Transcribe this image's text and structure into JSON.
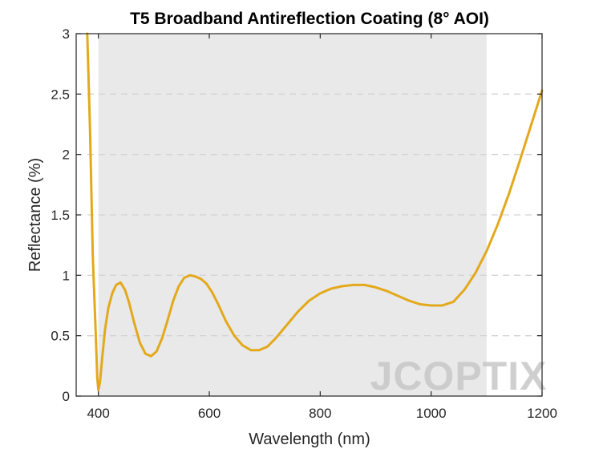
{
  "chart_data": {
    "type": "line",
    "title": "T5 Broadband Antireflection Coating (8° AOI)",
    "xlabel": "Wavelength (nm)",
    "ylabel": "Reflectance (%)",
    "xlim": [
      360,
      1200
    ],
    "ylim": [
      0,
      3
    ],
    "xticks": [
      400,
      600,
      800,
      1000,
      1200
    ],
    "yticks": [
      0,
      0.5,
      1,
      1.5,
      2,
      2.5,
      3
    ],
    "xtick_labels": [
      "400",
      "600",
      "800",
      "1000",
      "1200"
    ],
    "ytick_labels": [
      "0",
      "0.5",
      "1",
      "1.5",
      "2",
      "2.5",
      "3"
    ],
    "grid": "horizontal dashed",
    "highlight_band": [
      400,
      1100
    ],
    "series": [
      {
        "color": "#E3A91C",
        "x": [
          380,
          385,
          390,
          395,
          398,
          400,
          403,
          407,
          412,
          418,
          425,
          432,
          440,
          448,
          455,
          465,
          475,
          485,
          495,
          505,
          515,
          525,
          535,
          545,
          555,
          565,
          575,
          585,
          595,
          605,
          615,
          630,
          645,
          660,
          675,
          690,
          705,
          720,
          740,
          760,
          780,
          800,
          820,
          840,
          860,
          880,
          900,
          920,
          940,
          960,
          980,
          1000,
          1020,
          1040,
          1060,
          1080,
          1100,
          1120,
          1140,
          1160,
          1180,
          1200
        ],
        "y": [
          3.0,
          2.2,
          1.15,
          0.55,
          0.15,
          0.05,
          0.12,
          0.32,
          0.55,
          0.73,
          0.85,
          0.92,
          0.94,
          0.88,
          0.78,
          0.6,
          0.44,
          0.35,
          0.33,
          0.37,
          0.48,
          0.63,
          0.79,
          0.91,
          0.98,
          1.0,
          0.99,
          0.97,
          0.93,
          0.86,
          0.77,
          0.62,
          0.5,
          0.42,
          0.38,
          0.38,
          0.41,
          0.48,
          0.59,
          0.7,
          0.79,
          0.85,
          0.89,
          0.91,
          0.92,
          0.92,
          0.9,
          0.87,
          0.83,
          0.79,
          0.76,
          0.75,
          0.75,
          0.78,
          0.88,
          1.02,
          1.2,
          1.42,
          1.67,
          1.95,
          2.24,
          2.53
        ]
      }
    ]
  },
  "watermark": {
    "text": "JCOPTIX"
  }
}
